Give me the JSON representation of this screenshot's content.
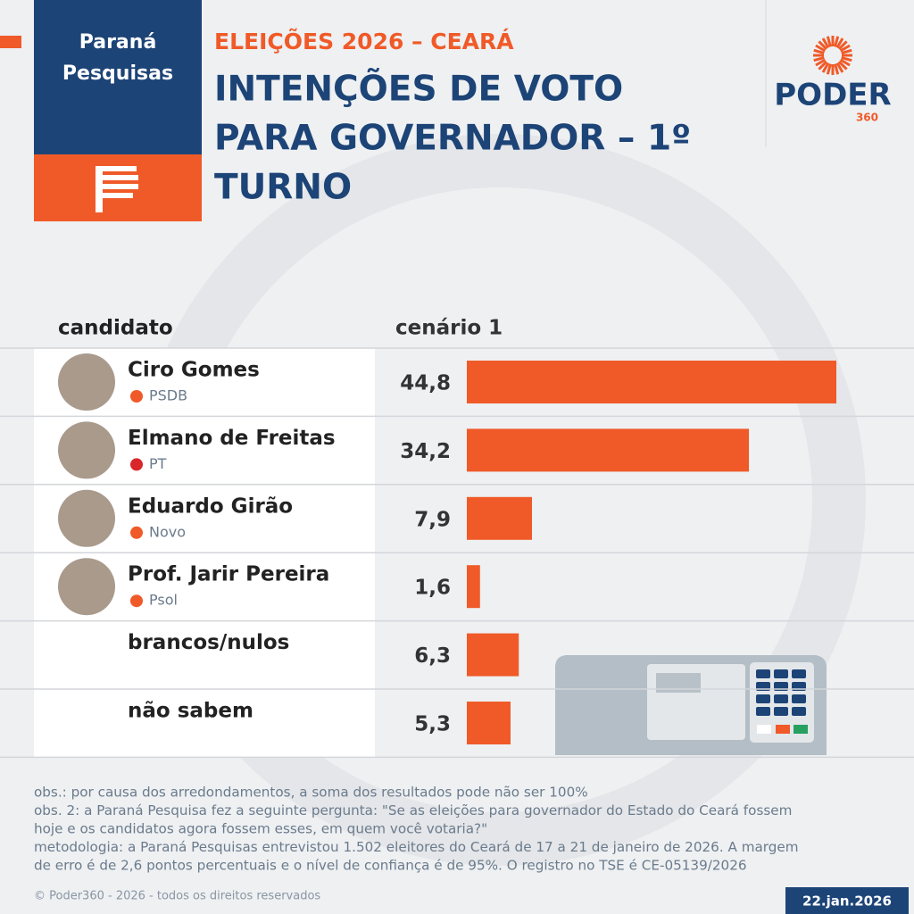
{
  "header": {
    "institute": [
      "Paraná",
      "Pesquisas"
    ],
    "subtitle": "ELEIÇÕES 2026 – CEARÁ",
    "title": [
      "INTENÇÕES DE VOTO",
      "PARA GOVERNADOR – 1º",
      "TURNO"
    ],
    "logo": "PODER",
    "logo_number": "360"
  },
  "chart_data": {
    "type": "bar",
    "orientation": "horizontal",
    "category_header": "candidato",
    "series_header": "cenário 1",
    "categories": [
      "Ciro Gomes",
      "Elmano de Freitas",
      "Eduardo Girão",
      "Prof. Jarir Pereira",
      "brancos/nulos",
      "não sabem"
    ],
    "parties": [
      "PSDB",
      "PT",
      "Novo",
      "Psol",
      null,
      null
    ],
    "values": [
      44.8,
      34.2,
      7.9,
      1.6,
      6.3,
      5.3
    ],
    "value_labels": [
      "44,8",
      "34,2",
      "7,9",
      "1,6",
      "6,3",
      "5,3"
    ],
    "color": "#f05a28"
  },
  "notes": [
    "obs.: por causa dos arredondamentos, a soma dos resultados pode não ser 100%",
    "obs. 2: a Paraná Pesquisa fez a seguinte pergunta: \"Se as eleições para governador do Estado do Ceará fossem",
    "hoje e os candidatos agora fossem esses, em quem você votaria?\"",
    "metodologia: a Paraná Pesquisas entrevistou 1.502 eleitores do Ceará de 17 a 21 de janeiro de 2026. A margem",
    "de erro é de 2,6 pontos percentuais e o nível de confiança é de 95%. O registro no TSE é CE-05139/2026"
  ],
  "footer": {
    "copyright": "© Poder360 - 2026 - todos os direitos reservados",
    "date": "22.jan.2026"
  }
}
